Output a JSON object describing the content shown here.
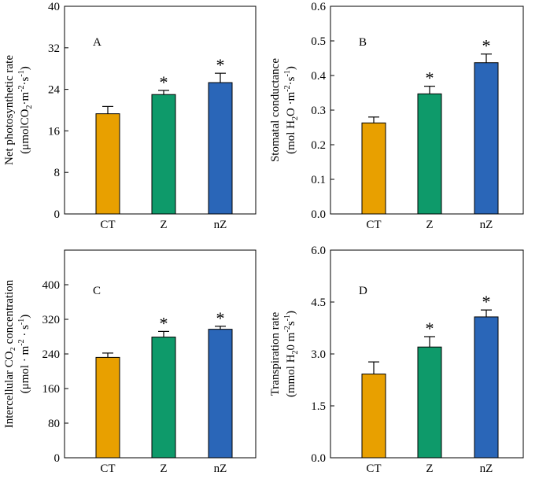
{
  "colors": {
    "CT": "#E8A000",
    "Z": "#0E9A6A",
    "nZ": "#2A66B8",
    "axis": "#000000",
    "background": "#FFFFFF"
  },
  "chart_data": [
    {
      "id": "A",
      "type": "bar",
      "panel_label": "A",
      "categories": [
        "CT",
        "Z",
        "nZ"
      ],
      "values": [
        19.3,
        23.0,
        25.3
      ],
      "errors": [
        1.4,
        0.8,
        1.8
      ],
      "significance": [
        "",
        "*",
        "*"
      ],
      "ylabel": "Net photosynthetic rate",
      "ylabel_unit": {
        "open": "(μmolCO",
        "sub": "2",
        "mid": "·m",
        "sup1": "-2",
        "sep": "·s",
        "sup2": "-1",
        "close": ")"
      },
      "ylim": [
        0,
        40
      ],
      "yticks": [
        0,
        8,
        16,
        24,
        32,
        40
      ],
      "ytick_labels": [
        "0",
        "8",
        "16",
        "24",
        "32",
        "40"
      ]
    },
    {
      "id": "B",
      "type": "bar",
      "panel_label": "B",
      "categories": [
        "CT",
        "Z",
        "nZ"
      ],
      "values": [
        0.263,
        0.347,
        0.437
      ],
      "errors": [
        0.017,
        0.022,
        0.025
      ],
      "significance": [
        "",
        "*",
        "*"
      ],
      "ylabel": "Stomatal conductance",
      "ylabel_unit": {
        "open": "(mol H",
        "sub": "2",
        "mid": "O ·m",
        "sup1": "-2",
        "sep": "·s",
        "sup2": "-1",
        "close": ")"
      },
      "ylim": [
        0,
        0.6
      ],
      "yticks": [
        0,
        0.1,
        0.2,
        0.3,
        0.4,
        0.5,
        0.6
      ],
      "ytick_labels": [
        "0.0",
        "0.1",
        "0.2",
        "0.3",
        "0.4",
        "0.5",
        "0.6"
      ]
    },
    {
      "id": "C",
      "type": "bar",
      "panel_label": "C",
      "categories": [
        "CT",
        "Z",
        "nZ"
      ],
      "values": [
        232,
        279,
        297
      ],
      "errors": [
        10,
        13,
        7
      ],
      "significance": [
        "",
        "*",
        "*"
      ],
      "ylabel": "Intercellular CO₂ concentration",
      "ylabel_unit": {
        "open": "(μmol · m",
        "sub": "",
        "mid": "",
        "sup1": "-2",
        "sep": " · s",
        "sup2": "-1",
        "close": ")"
      },
      "ylim": [
        0,
        480
      ],
      "yticks": [
        0,
        80,
        160,
        240,
        320,
        400
      ],
      "ytick_labels": [
        "0",
        "80",
        "160",
        "240",
        "320",
        "400"
      ]
    },
    {
      "id": "D",
      "type": "bar",
      "panel_label": "D",
      "categories": [
        "CT",
        "Z",
        "nZ"
      ],
      "values": [
        2.42,
        3.2,
        4.07
      ],
      "errors": [
        0.35,
        0.3,
        0.2
      ],
      "significance": [
        "",
        "*",
        "*"
      ],
      "ylabel": "Transpiration rate",
      "ylabel_unit": {
        "open": "(mmol H",
        "sub": "2",
        "mid": "0 m",
        "sup1": "-2",
        "sep": "s",
        "sup2": "-1",
        "close": ")"
      },
      "ylim": [
        0,
        6
      ],
      "yticks": [
        0,
        1.5,
        3,
        4.5,
        6
      ],
      "ytick_labels": [
        "0.0",
        "1.5",
        "3.0",
        "4.5",
        "6.0"
      ]
    }
  ]
}
